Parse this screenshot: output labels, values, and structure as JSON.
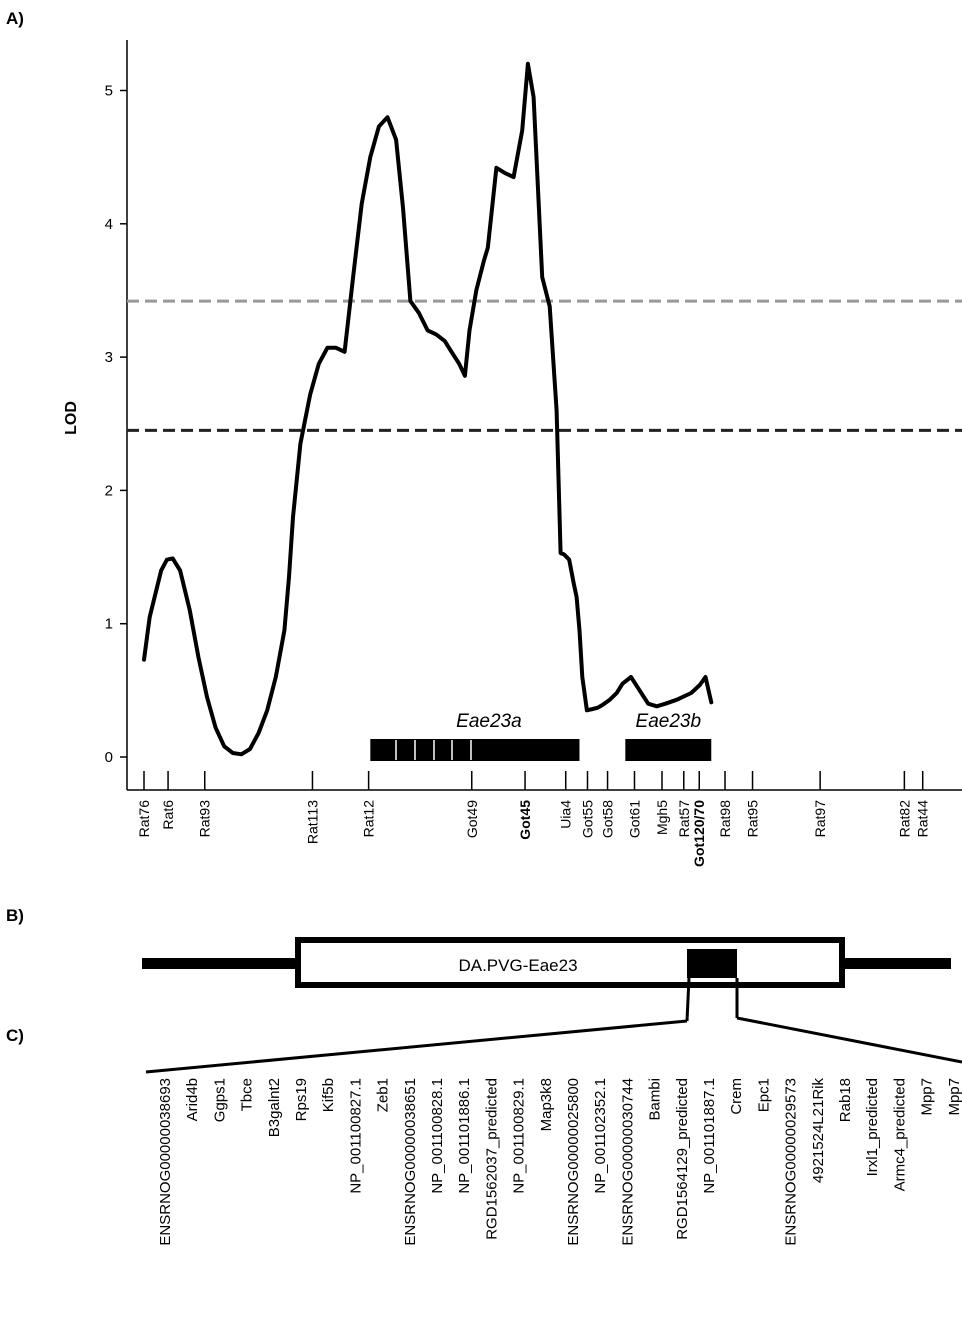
{
  "panels": {
    "a": "A)",
    "b": "B)",
    "c": "C)"
  },
  "chart_data": {
    "type": "line",
    "xlabel": "",
    "ylabel": "LOD",
    "ylim": [
      0,
      5
    ],
    "yticks": [
      0,
      1,
      2,
      3,
      4,
      5
    ],
    "grid": false,
    "x_unit": "relative marker position (0-100)",
    "series": [
      {
        "x": [
          0,
          1,
          3,
          4,
          5,
          6.3,
          8,
          9.5,
          11,
          12.5,
          14,
          15.5,
          17,
          18.5,
          20,
          21.5,
          23,
          24.5,
          25.3,
          26,
          27.3,
          29,
          30.5,
          32,
          33.5,
          35,
          36.5,
          38,
          39.5,
          41,
          42.5,
          44,
          45.2,
          46.5,
          48,
          49.5,
          51,
          52.5,
          53.5,
          55,
          56,
          56.8,
          58,
          59.3,
          60,
          61.5,
          63,
          64.5,
          66,
          67,
          68,
          69.5,
          70.8,
          72,
          72.7,
          73.3,
          74.2,
          75,
          75.5,
          76,
          76.5,
          77.3,
          78.3,
          79.2,
          80,
          81.3,
          82.5,
          83.5,
          85,
          86.5,
          88,
          89.5,
          91,
          93,
          95.5,
          97,
          98,
          99
        ],
        "y": [
          0.73,
          1.05,
          1.4,
          1.48,
          1.49,
          1.4,
          1.1,
          0.75,
          0.45,
          0.22,
          0.08,
          0.03,
          0.02,
          0.06,
          0.18,
          0.35,
          0.6,
          0.95,
          1.35,
          1.8,
          2.35,
          2.72,
          2.95,
          3.07,
          3.07,
          3.04,
          3.6,
          4.15,
          4.5,
          4.73,
          4.8,
          4.63,
          4.12,
          3.42,
          3.33,
          3.2,
          3.17,
          3.12,
          3.05,
          2.95,
          2.86,
          3.2,
          3.5,
          3.72,
          3.82,
          4.42,
          4.38,
          4.35,
          4.7,
          5.2,
          4.95,
          3.6,
          3.38,
          2.6,
          1.53,
          1.52,
          1.48,
          1.3,
          1.2,
          0.95,
          0.6,
          0.35,
          0.36,
          0.37,
          0.39,
          0.43,
          0.48,
          0.55,
          0.6,
          0.5,
          0.4,
          0.38,
          0.4,
          0.43,
          0.48,
          0.54,
          0.6,
          0.41
        ]
      }
    ],
    "thresholds": [
      {
        "value": 3.42,
        "color": "#999999",
        "style": "dashed"
      },
      {
        "value": 2.45,
        "color": "#222222",
        "style": "dashed"
      }
    ],
    "qtl_regions": [
      {
        "label": "Eae23a",
        "start": 39.5,
        "end": 76
      },
      {
        "label": "Eae23b",
        "start": 84,
        "end": 99
      }
    ],
    "markers": [
      {
        "name": "Rat76",
        "pos": 0
      },
      {
        "name": "Rat6",
        "pos": 4.2
      },
      {
        "name": "Rat93",
        "pos": 10.6
      },
      {
        "name": "Rat113",
        "pos": 29.4
      },
      {
        "name": "Rat12",
        "pos": 39.2
      },
      {
        "name": "Got49",
        "pos": 57.2
      },
      {
        "name": "Got45",
        "pos": 66.5,
        "bold": true
      },
      {
        "name": "Uia4",
        "pos": 73.6
      },
      {
        "name": "Got55",
        "pos": 77.4
      },
      {
        "name": "Got58",
        "pos": 80.9
      },
      {
        "name": "Got61",
        "pos": 85.6
      },
      {
        "name": "Mgh5",
        "pos": 90.4
      },
      {
        "name": "Rat57",
        "pos": 94.2
      },
      {
        "name": "Got120/70",
        "pos": 96.9,
        "bold": true
      },
      {
        "name": "Rat98",
        "pos": 101.4
      },
      {
        "name": "Rat95",
        "pos": 106.2
      },
      {
        "name": "Rat97",
        "pos": 118
      },
      {
        "name": "Rat82",
        "pos": 132.7
      },
      {
        "name": "Rat44",
        "pos": 135.9
      }
    ]
  },
  "congenic": {
    "label": "DA.PVG-Eae23"
  },
  "genes": [
    "ENSRNOG00000038693",
    "Arid4b",
    "Ggps1",
    "Tbce",
    "B3galnt2",
    "Rps19",
    "Kif5b",
    "NP_001100827.1",
    "Zeb1",
    "ENSRNOG00000038651",
    "NP_001100828.1",
    "NP_001101886.1",
    "RGD1562037_predicted",
    "NP_001100829.1",
    "Map3k8",
    "ENSRNOG00000025800",
    "NP_001102352.1",
    "ENSRNOG00000030744",
    "Bambi",
    "RGD1564129_predicted",
    "NP_001101887.1",
    "Crem",
    "Epc1",
    "ENSRNOG00000029573",
    "4921524L21Rik",
    "Rab18",
    "Irxl1_predicted",
    "Armc4_predicted",
    "Mpp7",
    "Mpp7"
  ]
}
